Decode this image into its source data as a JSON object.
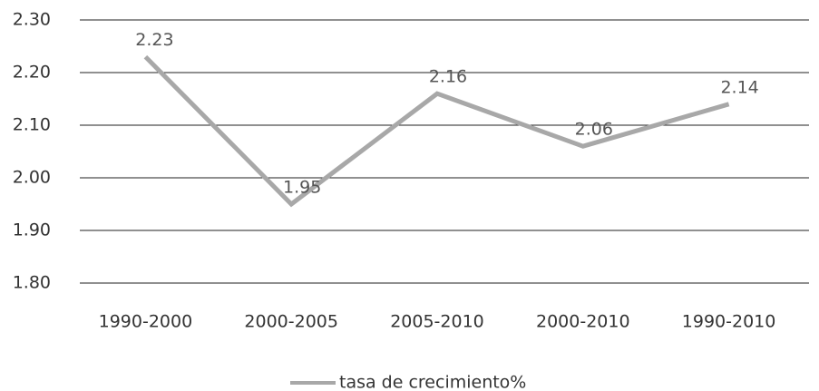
{
  "chart_data": {
    "type": "line",
    "categories": [
      "1990-2000",
      "2000-2005",
      "2005-2010",
      "2000-2010",
      "1990-2010"
    ],
    "series": [
      {
        "name": "tasa de crecimiento%",
        "color": "#a8a8a8",
        "values": [
          2.23,
          1.95,
          2.16,
          2.06,
          2.14
        ]
      }
    ],
    "ylim": [
      1.8,
      2.3
    ],
    "yticks": [
      {
        "value": 1.8,
        "label": "1.80"
      },
      {
        "value": 1.9,
        "label": "1.90"
      },
      {
        "value": 2.0,
        "label": "2.00"
      },
      {
        "value": 2.1,
        "label": "2.10"
      },
      {
        "value": 2.2,
        "label": "2.20"
      },
      {
        "value": 2.3,
        "label": "2.30"
      }
    ],
    "grid": true,
    "legend": "bottom"
  }
}
